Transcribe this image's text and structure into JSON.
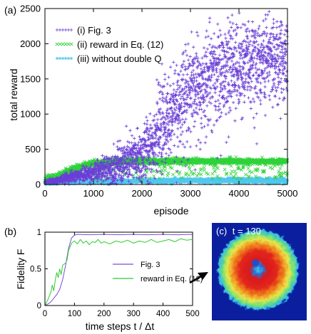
{
  "chart_data": [
    {
      "type": "scatter",
      "panel_label": "(a)",
      "xlabel": "episode",
      "ylabel": "total reward",
      "xlim": [
        0,
        5000
      ],
      "ylim": [
        0,
        2500
      ],
      "xticks": [
        "0",
        "1000",
        "2000",
        "3000",
        "4000",
        "5000"
      ],
      "yticks": [
        "0",
        "500",
        "1000",
        "1500",
        "2000",
        "2500"
      ],
      "legend_position": "top-left",
      "series": [
        {
          "name": "(i) Fig. 3",
          "color": "#6a3fd6",
          "marker": "plus",
          "trend": [
            [
              0,
              40
            ],
            [
              250,
              55
            ],
            [
              500,
              100
            ],
            [
              1000,
              170
            ],
            [
              1500,
              270
            ],
            [
              2000,
              400
            ],
            [
              2200,
              600
            ],
            [
              2400,
              800
            ],
            [
              2600,
              1000
            ],
            [
              2800,
              1200
            ],
            [
              3000,
              1350
            ],
            [
              3500,
              1550
            ],
            [
              4000,
              1700
            ],
            [
              4500,
              1800
            ],
            [
              5000,
              1850
            ]
          ],
          "spread": [
            [
              0,
              10
            ],
            [
              1000,
              60
            ],
            [
              2000,
              200
            ],
            [
              2500,
              300
            ],
            [
              3000,
              320
            ],
            [
              4000,
              300
            ],
            [
              5000,
              300
            ]
          ]
        },
        {
          "name": "(ii) reward in Eq. (12)",
          "color": "#2fd23a",
          "marker": "cross",
          "trend": [
            [
              0,
              60
            ],
            [
              300,
              120
            ],
            [
              600,
              220
            ],
            [
              1000,
              300
            ],
            [
              1500,
              330
            ],
            [
              2000,
              330
            ],
            [
              3000,
              330
            ],
            [
              4000,
              330
            ],
            [
              5000,
              330
            ]
          ],
          "spread": [
            [
              0,
              30
            ],
            [
              1000,
              20
            ],
            [
              5000,
              15
            ]
          ]
        },
        {
          "name": "(iii) without double Q",
          "color": "#50c8ee",
          "marker": "star",
          "trend": [
            [
              0,
              20
            ],
            [
              500,
              30
            ],
            [
              1000,
              40
            ],
            [
              2000,
              50
            ],
            [
              3000,
              55
            ],
            [
              4000,
              55
            ],
            [
              5000,
              55
            ]
          ],
          "spread": [
            [
              0,
              10
            ],
            [
              5000,
              20
            ]
          ]
        }
      ]
    },
    {
      "type": "line",
      "panel_label": "(b)",
      "xlabel": "time steps t / Δt",
      "ylabel": "Fidelity F",
      "xlim": [
        0,
        500
      ],
      "ylim": [
        0,
        1
      ],
      "xticks": [
        "0",
        "100",
        "200",
        "300",
        "400",
        "500"
      ],
      "yticks": [
        "0",
        "0.5",
        "1"
      ],
      "legend_position": "right",
      "series": [
        {
          "name": "Fig. 3",
          "color": "#7a4fd8",
          "points": [
            [
              0,
              0
            ],
            [
              10,
              0.02
            ],
            [
              20,
              0.05
            ],
            [
              30,
              0.1
            ],
            [
              40,
              0.15
            ],
            [
              50,
              0.22
            ],
            [
              60,
              0.35
            ],
            [
              70,
              0.55
            ],
            [
              80,
              0.78
            ],
            [
              90,
              0.92
            ],
            [
              100,
              0.96
            ],
            [
              110,
              0.97
            ],
            [
              150,
              0.965
            ],
            [
              200,
              0.97
            ],
            [
              250,
              0.965
            ],
            [
              300,
              0.97
            ],
            [
              350,
              0.965
            ],
            [
              400,
              0.97
            ],
            [
              450,
              0.965
            ],
            [
              500,
              0.97
            ]
          ]
        },
        {
          "name": "reward in Eq. (12)",
          "color": "#2ecc2e",
          "points": [
            [
              0,
              0
            ],
            [
              10,
              0.08
            ],
            [
              20,
              0.18
            ],
            [
              25,
              0.28
            ],
            [
              30,
              0.2
            ],
            [
              35,
              0.35
            ],
            [
              40,
              0.45
            ],
            [
              45,
              0.38
            ],
            [
              50,
              0.5
            ],
            [
              55,
              0.42
            ],
            [
              60,
              0.55
            ],
            [
              70,
              0.58
            ],
            [
              75,
              0.62
            ],
            [
              80,
              0.75
            ],
            [
              90,
              0.85
            ],
            [
              100,
              0.88
            ],
            [
              110,
              0.84
            ],
            [
              120,
              0.9
            ],
            [
              130,
              0.85
            ],
            [
              140,
              0.88
            ],
            [
              150,
              0.83
            ],
            [
              160,
              0.87
            ],
            [
              170,
              0.86
            ],
            [
              180,
              0.9
            ],
            [
              190,
              0.85
            ],
            [
              200,
              0.87
            ],
            [
              220,
              0.84
            ],
            [
              240,
              0.88
            ],
            [
              260,
              0.86
            ],
            [
              280,
              0.89
            ],
            [
              300,
              0.85
            ],
            [
              320,
              0.88
            ],
            [
              340,
              0.86
            ],
            [
              360,
              0.9
            ],
            [
              380,
              0.86
            ],
            [
              400,
              0.88
            ],
            [
              420,
              0.9
            ],
            [
              440,
              0.87
            ],
            [
              460,
              0.91
            ],
            [
              480,
              0.89
            ],
            [
              500,
              0.9
            ]
          ]
        }
      ]
    },
    {
      "type": "heatmap",
      "panel_label": "(c)",
      "title": "t = 130",
      "colormap": [
        "#0b1f9e",
        "#1f6fd6",
        "#33c7e0",
        "#7be07a",
        "#f2e64a",
        "#f08a1e",
        "#d7191c",
        "#8a0f0f"
      ]
    }
  ]
}
